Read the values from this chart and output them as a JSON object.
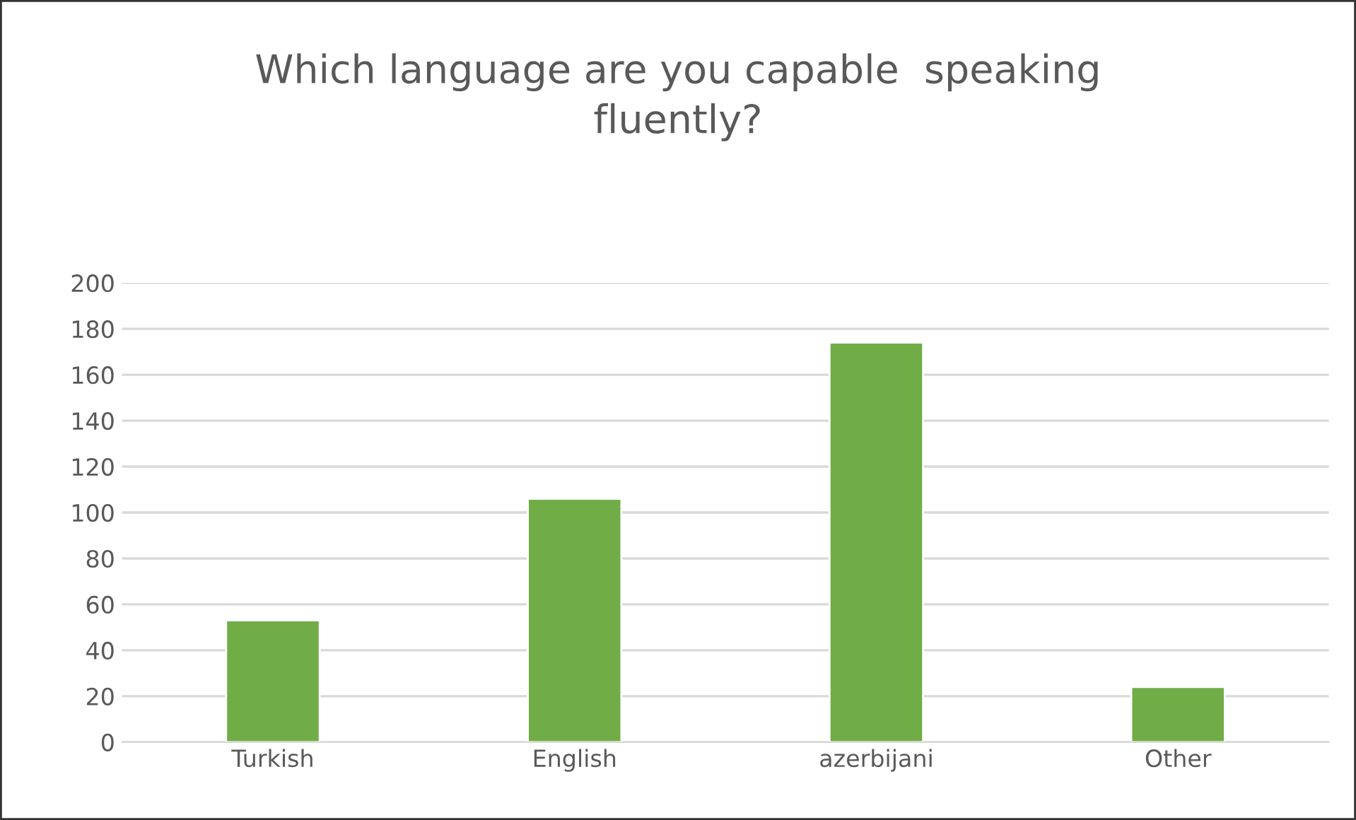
{
  "chart_data": {
    "type": "bar",
    "title": "Which language are you capable  speaking\nfluently?",
    "categories": [
      "Turkish",
      "English",
      "azerbijani",
      "Other"
    ],
    "values": [
      53,
      106,
      174,
      24
    ],
    "color": "#70ad47",
    "ylim": [
      0,
      200
    ],
    "yticks": [
      0,
      20,
      40,
      60,
      80,
      100,
      120,
      140,
      160,
      180,
      200
    ],
    "grid": "y"
  }
}
